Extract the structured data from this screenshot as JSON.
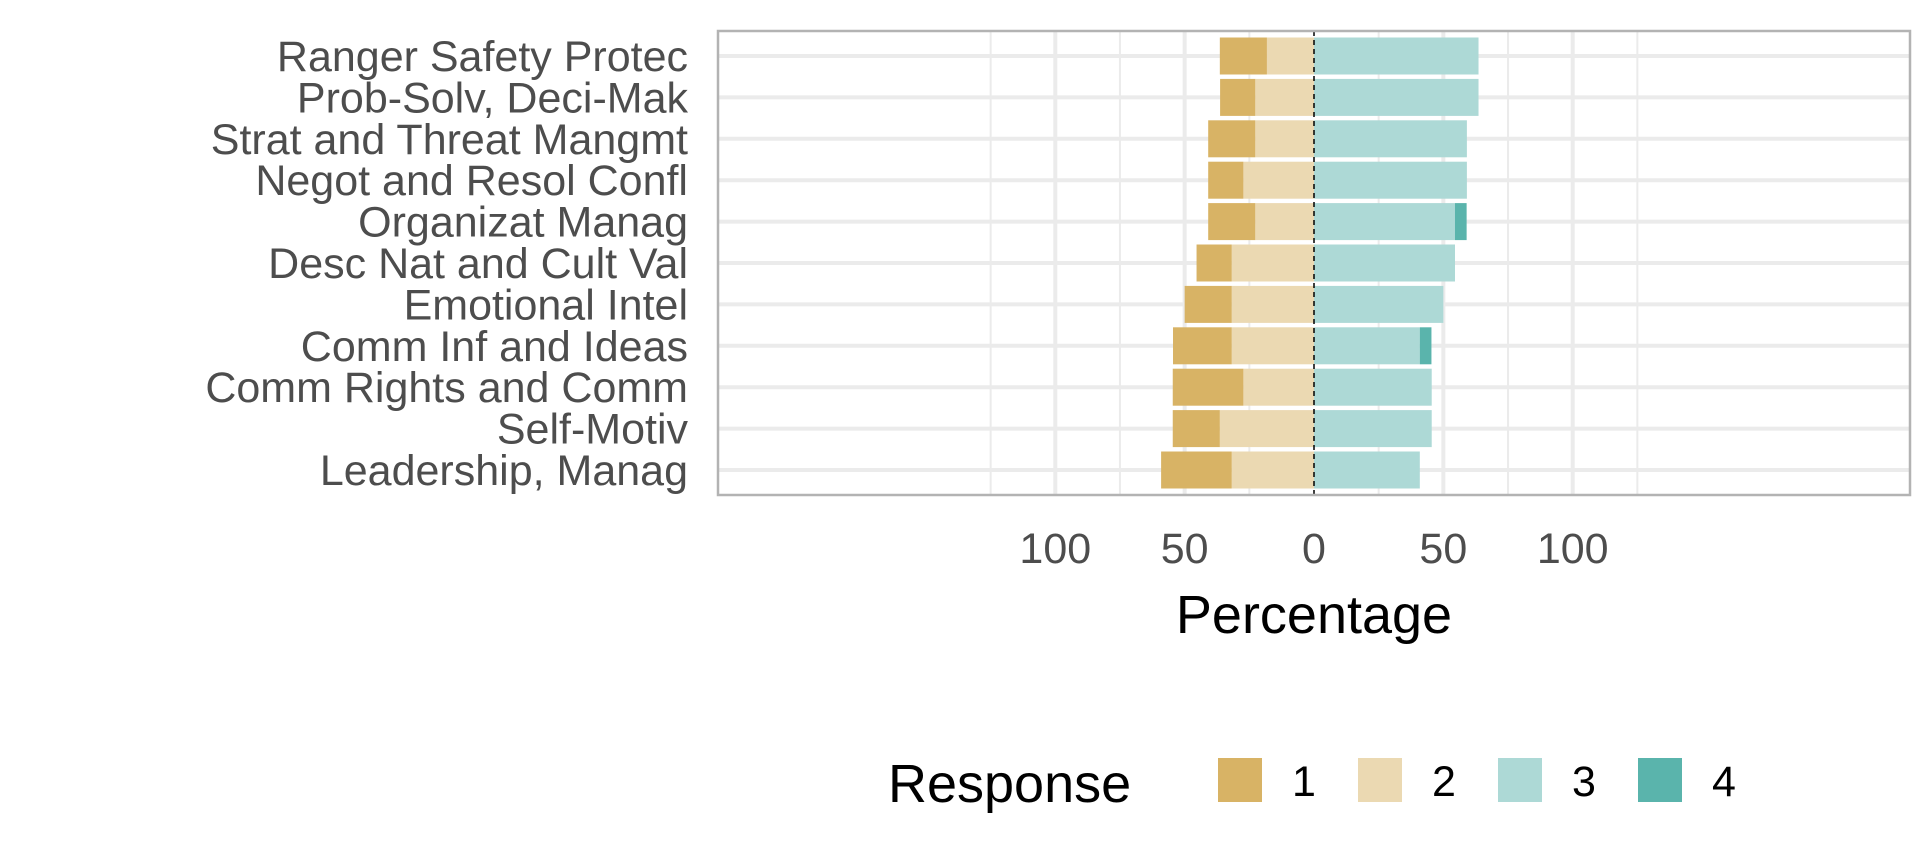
{
  "chart_data": {
    "type": "bar",
    "orientation": "horizontal-diverging",
    "xlabel": "Percentage",
    "x_ticks": [
      -100,
      -50,
      0,
      50,
      100
    ],
    "x_tick_labels": [
      "100",
      "50",
      "0",
      "50",
      "100"
    ],
    "xlim": [
      -115,
      115
    ],
    "grid": true,
    "categories": [
      "Ranger Safety Protec",
      "Prob-Solv, Deci-Mak",
      "Strat and Threat Mangmt",
      "Negot and Resol Confl",
      "Organizat Manag",
      "Desc Nat and Cult Val",
      "Emotional Intel",
      "Comm Inf and Ideas",
      "Comm Rights and Comm",
      "Self-Motiv",
      "Leadership, Manag"
    ],
    "legend": {
      "title": "Response",
      "position": "bottom"
    },
    "series": [
      {
        "name": "1",
        "color": "#D8B365",
        "side": "negative",
        "values": [
          18.2,
          13.6,
          18.2,
          13.6,
          18.2,
          13.6,
          18.2,
          22.7,
          27.3,
          18.2,
          27.3
        ]
      },
      {
        "name": "2",
        "color": "#EBD9B2",
        "side": "negative",
        "values": [
          18.2,
          22.7,
          22.7,
          27.3,
          22.7,
          31.8,
          31.8,
          31.8,
          27.3,
          36.4,
          31.8
        ]
      },
      {
        "name": "3",
        "color": "#ADD9D6",
        "side": "positive",
        "values": [
          63.6,
          63.6,
          59.1,
          59.1,
          54.5,
          54.5,
          50.0,
          40.9,
          45.5,
          45.5,
          40.9
        ]
      },
      {
        "name": "4",
        "color": "#5AB4AC",
        "side": "positive",
        "values": [
          0,
          0,
          0,
          0,
          4.5,
          0,
          0,
          4.5,
          0,
          0,
          0
        ]
      }
    ]
  }
}
